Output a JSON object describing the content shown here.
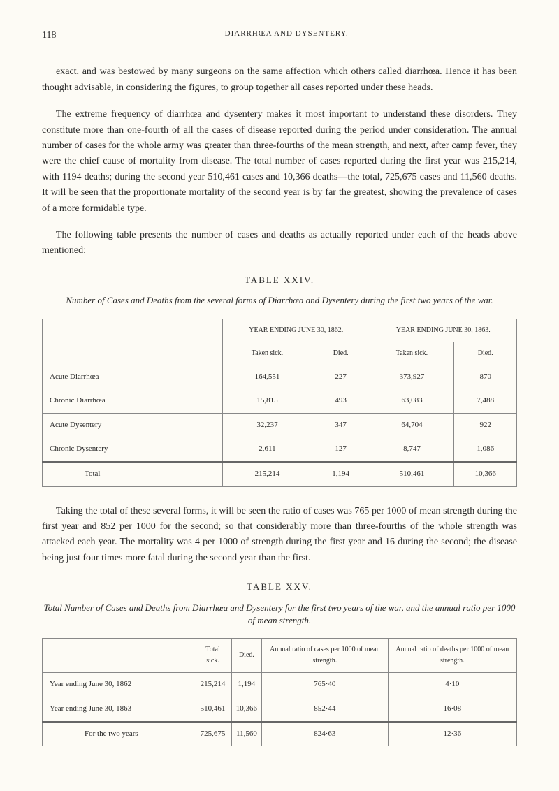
{
  "pageNumber": "118",
  "runningHead": "DIARRHŒA AND DYSENTERY.",
  "paragraphs": {
    "p1": "exact, and was bestowed by many surgeons on the same affection which others called diarrhœa. Hence it has been thought advisable, in considering the figures, to group together all cases reported under these heads.",
    "p2": "The extreme frequency of diarrhœa and dysentery makes it most important to understand these disorders. They constitute more than one-fourth of all the cases of disease reported during the period under consideration. The annual number of cases for the whole army was greater than three-fourths of the mean strength, and next, after camp fever, they were the chief cause of mortality from disease. The total number of cases reported during the first year was 215,214, with 1194 deaths; during the second year 510,461 cases and 10,366 deaths—the total, 725,675 cases and 11,560 deaths. It will be seen that the proportionate mortality of the second year is by far the greatest, showing the prevalence of cases of a more formidable type.",
    "p3": "The following table presents the number of cases and deaths as actually reported under each of the heads above mentioned:",
    "p4": "Taking the total of these several forms, it will be seen the ratio of cases was 765 per 1000 of mean strength during the first year and 852 per 1000 for the second; so that considerably more than three-fourths of the whole strength was attacked each year. The mortality was 4 per 1000 of strength during the first year and 16 during the second; the disease being just four times more fatal during the second year than the first."
  },
  "table1": {
    "label": "TABLE XXIV.",
    "caption": "Number of Cases and Deaths from the several forms of Diarrhœa and Dysentery during the first two years of the war.",
    "headers": {
      "year1": "YEAR ENDING JUNE 30, 1862.",
      "year2": "YEAR ENDING JUNE 30, 1863.",
      "takenSick": "Taken sick.",
      "died": "Died."
    },
    "rows": [
      {
        "label": "Acute Diarrhœa",
        "y1sick": "164,551",
        "y1died": "227",
        "y2sick": "373,927",
        "y2died": "870"
      },
      {
        "label": "Chronic Diarrhœa",
        "y1sick": "15,815",
        "y1died": "493",
        "y2sick": "63,083",
        "y2died": "7,488"
      },
      {
        "label": "Acute Dysentery",
        "y1sick": "32,237",
        "y1died": "347",
        "y2sick": "64,704",
        "y2died": "922"
      },
      {
        "label": "Chronic Dysentery",
        "y1sick": "2,611",
        "y1died": "127",
        "y2sick": "8,747",
        "y2died": "1,086"
      }
    ],
    "total": {
      "label": "Total",
      "y1sick": "215,214",
      "y1died": "1,194",
      "y2sick": "510,461",
      "y2died": "10,366"
    }
  },
  "table2": {
    "label": "TABLE XXV.",
    "caption": "Total Number of Cases and Deaths from Diarrhœa and Dysentery for the first two years of the war, and the annual ratio per 1000 of mean strength.",
    "headers": {
      "totalSick": "Total sick.",
      "died": "Died.",
      "ratioCases": "Annual ratio of cases per 1000 of mean strength.",
      "ratioDeaths": "Annual ratio of deaths per 1000 of mean strength."
    },
    "rows": [
      {
        "label": "Year ending June 30, 1862",
        "sick": "215,214",
        "died": "1,194",
        "rcases": "765·40",
        "rdeaths": "4·10"
      },
      {
        "label": "Year ending June 30, 1863",
        "sick": "510,461",
        "died": "10,366",
        "rcases": "852·44",
        "rdeaths": "16·08"
      }
    ],
    "total": {
      "label": "For the two years",
      "sick": "725,675",
      "died": "11,560",
      "rcases": "824·63",
      "rdeaths": "12·36"
    }
  }
}
